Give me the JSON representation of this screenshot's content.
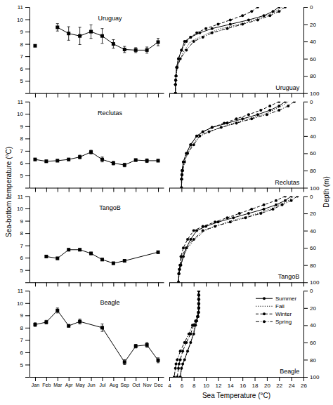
{
  "chart_data": [
    {
      "type": "line",
      "annotations": [
        "Uruguay"
      ],
      "categories": [
        "Jan",
        "Feb",
        "Mar",
        "Apr",
        "May",
        "Jun",
        "Jul",
        "Aug",
        "Sep",
        "Oct",
        "Nov",
        "Dec"
      ],
      "series": [
        {
          "x": [
            "Jan"
          ],
          "values": [
            7.85
          ],
          "line_style": "none"
        },
        {
          "x": [
            "Mar",
            "Apr",
            "May",
            "Jun",
            "Jul",
            "Aug",
            "Sep",
            "Oct",
            "Nov",
            "Dec"
          ],
          "values": [
            9.35,
            8.85,
            8.65,
            9.0,
            8.65,
            8.0,
            7.55,
            7.5,
            7.5,
            8.15
          ],
          "errors": [
            0.3,
            0.55,
            0.7,
            0.55,
            0.6,
            0.35,
            0.25,
            0.2,
            0.25,
            0.3
          ]
        }
      ],
      "color": "black",
      "marker": "square",
      "line_style": "solid",
      "ylim": [
        4,
        11
      ],
      "yticks": [
        {
          "value": 4,
          "label": null
        },
        5,
        6,
        7,
        8,
        9,
        10,
        11
      ],
      "tick_labels": "y"
    },
    {
      "type": "line",
      "annotations": [
        "Uruguay"
      ],
      "xlim": [
        4,
        26
      ],
      "xticks": [
        4,
        6,
        8,
        10,
        12,
        14,
        16,
        18,
        20,
        22,
        24,
        26
      ],
      "ylim": [
        100,
        0
      ],
      "yticks": [
        0,
        20,
        40,
        60,
        80,
        100
      ],
      "color": "black",
      "tick_labels": "y",
      "series": [
        {
          "x": [
            22.0,
            21.0,
            19.5,
            17.0,
            14.0,
            11.0,
            9.0,
            7.5,
            6.5,
            6.0,
            5.5,
            5.2,
            5.1,
            5.05,
            5.0,
            5.0
          ],
          "values": [
            0,
            5,
            10,
            15,
            20,
            25,
            30,
            35,
            40,
            50,
            60,
            70,
            80,
            85,
            90,
            100
          ],
          "line_style": "solid",
          "marker": "circle"
        },
        {
          "x": [
            22.5,
            21.5,
            20.0,
            18.0,
            15.5,
            12.5,
            10.5,
            9.0,
            7.5,
            6.5,
            5.8,
            5.3,
            5.1,
            5.05,
            5.0,
            5.0
          ],
          "values": [
            0,
            5,
            10,
            15,
            20,
            25,
            30,
            35,
            40,
            50,
            60,
            70,
            80,
            85,
            90,
            100
          ],
          "line_style": "dotted"
        },
        {
          "x": [
            18.5,
            17.5,
            16.0,
            14.0,
            12.0,
            10.0,
            8.5,
            7.5,
            6.8,
            6.0,
            5.5,
            5.2,
            5.1,
            5.05,
            5.0,
            5.0
          ],
          "values": [
            0,
            5,
            10,
            15,
            20,
            25,
            30,
            35,
            40,
            50,
            60,
            70,
            80,
            85,
            90,
            100
          ],
          "line_style": "dashed",
          "marker": "circle"
        },
        {
          "x": [
            23.0,
            22.0,
            20.5,
            18.5,
            16.0,
            13.5,
            11.0,
            9.5,
            8.0,
            6.8,
            5.8,
            5.3,
            5.1,
            5.05,
            5.0,
            5.0
          ],
          "values": [
            0,
            5,
            10,
            15,
            20,
            25,
            30,
            35,
            40,
            50,
            60,
            70,
            80,
            85,
            90,
            100
          ],
          "line_style": "dashdot",
          "marker": "circle"
        }
      ]
    },
    {
      "type": "line",
      "annotations": [
        "Reclutas"
      ],
      "ylabel": "Sea-bottom temperature (°C)",
      "categories": [
        "Jan",
        "Feb",
        "Mar",
        "Apr",
        "May",
        "Jun",
        "Jul",
        "Aug",
        "Sep",
        "Oct",
        "Nov",
        "Dec"
      ],
      "series": [
        {
          "x": [
            "Jan",
            "Feb",
            "Mar",
            "Apr",
            "May",
            "Jun",
            "Jul",
            "Aug",
            "Sep",
            "Oct",
            "Nov",
            "Dec"
          ],
          "values": [
            6.3,
            6.15,
            6.2,
            6.3,
            6.5,
            6.9,
            6.3,
            6.0,
            5.85,
            6.25,
            6.2,
            6.2
          ],
          "errors": [
            0.1,
            0.1,
            0.1,
            0.1,
            0.15,
            0.15,
            0.2,
            0.15,
            0.15,
            0.1,
            0.15,
            0.1
          ]
        }
      ],
      "color": "black",
      "marker": "square",
      "line_style": "solid",
      "ylim": [
        4,
        11
      ],
      "yticks": [
        {
          "value": 4,
          "label": null
        },
        5,
        6,
        7,
        8,
        9,
        10,
        11
      ],
      "tick_labels": "y"
    },
    {
      "type": "line",
      "annotations": [
        "Reclutas"
      ],
      "ylabel": "Depth (m)",
      "xlim": [
        4,
        26
      ],
      "xticks": [
        4,
        6,
        8,
        10,
        12,
        14,
        16,
        18,
        20,
        22,
        24,
        26
      ],
      "ylim": [
        100,
        0
      ],
      "yticks": [
        0,
        20,
        40,
        60,
        80,
        100
      ],
      "color": "black",
      "tick_labels": "y",
      "series": [
        {
          "x": [
            23.0,
            22.0,
            20.5,
            18.5,
            16.0,
            13.5,
            11.0,
            9.5,
            8.5,
            7.5,
            6.8,
            6.3,
            6.1,
            6.05,
            6.0,
            6.0
          ],
          "values": [
            0,
            5,
            10,
            15,
            20,
            25,
            30,
            35,
            40,
            50,
            60,
            70,
            80,
            85,
            90,
            100
          ],
          "line_style": "solid",
          "marker": "circle"
        },
        {
          "x": [
            23.5,
            22.5,
            21.0,
            19.5,
            17.0,
            14.5,
            12.5,
            10.5,
            9.0,
            7.8,
            7.0,
            6.5,
            6.2,
            6.1,
            6.05,
            6.0
          ],
          "values": [
            0,
            5,
            10,
            15,
            20,
            25,
            30,
            35,
            40,
            50,
            60,
            70,
            80,
            85,
            90,
            100
          ],
          "line_style": "dotted"
        },
        {
          "x": [
            22.0,
            20.5,
            19.0,
            17.0,
            15.0,
            13.0,
            11.0,
            9.5,
            8.5,
            7.5,
            6.8,
            6.3,
            6.1,
            6.05,
            6.0,
            6.0
          ],
          "values": [
            0,
            5,
            10,
            15,
            20,
            25,
            30,
            35,
            40,
            50,
            60,
            70,
            80,
            85,
            90,
            100
          ],
          "line_style": "dashed",
          "marker": "circle"
        },
        {
          "x": [
            24.5,
            23.5,
            22.0,
            20.0,
            17.5,
            15.0,
            12.5,
            10.5,
            9.0,
            8.0,
            7.0,
            6.5,
            6.2,
            6.1,
            6.05,
            6.0
          ],
          "values": [
            0,
            5,
            10,
            15,
            20,
            25,
            30,
            35,
            40,
            50,
            60,
            70,
            80,
            85,
            90,
            100
          ],
          "line_style": "dashdot",
          "marker": "circle"
        }
      ]
    },
    {
      "type": "line",
      "annotations": [
        "TangoB"
      ],
      "categories": [
        "Jan",
        "Feb",
        "Mar",
        "Apr",
        "May",
        "Jun",
        "Jul",
        "Aug",
        "Sep",
        "Oct",
        "Nov",
        "Dec"
      ],
      "series": [
        {
          "x": [
            "Feb",
            "Mar",
            "Apr",
            "May",
            "Jun",
            "Jul",
            "Aug",
            "Sep",
            "Dec"
          ],
          "values": [
            6.1,
            5.95,
            6.65,
            6.65,
            6.35,
            5.85,
            5.55,
            5.75,
            6.45
          ],
          "errors": [
            0.1,
            0.1,
            0.1,
            0.1,
            0.1,
            0.1,
            0.1,
            0.1,
            0.1
          ]
        }
      ],
      "color": "black",
      "marker": "square",
      "line_style": "solid",
      "ylim": [
        4,
        11
      ],
      "yticks": [
        {
          "value": 4,
          "label": null
        },
        5,
        6,
        7,
        8,
        9,
        10,
        11
      ],
      "tick_labels": "y"
    },
    {
      "type": "line",
      "annotations": [
        "TangoB"
      ],
      "xlim": [
        4,
        26
      ],
      "xticks": [
        4,
        6,
        8,
        10,
        12,
        14,
        16,
        18,
        20,
        22,
        24,
        26
      ],
      "ylim": [
        100,
        0
      ],
      "yticks": [
        0,
        20,
        40,
        60,
        80,
        100
      ],
      "color": "black",
      "tick_labels": "y",
      "series": [
        {
          "x": [
            24.0,
            23.0,
            21.5,
            19.5,
            17.0,
            14.5,
            12.0,
            10.0,
            8.5,
            7.5,
            6.8,
            6.3,
            5.9,
            5.7,
            5.6,
            5.5
          ],
          "values": [
            0,
            5,
            10,
            15,
            20,
            25,
            30,
            35,
            40,
            50,
            60,
            70,
            80,
            85,
            90,
            100
          ],
          "line_style": "solid",
          "marker": "circle"
        },
        {
          "x": [
            24.5,
            23.5,
            22.0,
            20.5,
            18.5,
            16.0,
            13.5,
            11.5,
            9.8,
            8.2,
            7.0,
            6.3,
            5.9,
            5.7,
            5.6,
            5.5
          ],
          "values": [
            0,
            5,
            10,
            15,
            20,
            25,
            30,
            35,
            40,
            50,
            60,
            70,
            80,
            85,
            90,
            100
          ],
          "line_style": "dotted"
        },
        {
          "x": [
            23.0,
            21.5,
            19.5,
            17.5,
            15.5,
            13.5,
            11.5,
            9.5,
            8.0,
            7.0,
            6.3,
            5.9,
            5.75,
            5.65,
            5.55,
            5.5
          ],
          "values": [
            0,
            5,
            10,
            15,
            20,
            25,
            30,
            35,
            40,
            50,
            60,
            70,
            80,
            85,
            90,
            100
          ],
          "line_style": "dashed",
          "marker": "circle"
        },
        {
          "x": [
            25.0,
            24.0,
            22.5,
            21.0,
            19.0,
            16.5,
            14.0,
            11.5,
            9.5,
            8.0,
            6.8,
            6.0,
            5.8,
            5.65,
            5.55,
            5.5
          ],
          "values": [
            0,
            5,
            10,
            15,
            20,
            25,
            30,
            35,
            40,
            50,
            60,
            70,
            80,
            85,
            90,
            100
          ],
          "line_style": "dashdot",
          "marker": "circle"
        }
      ]
    },
    {
      "type": "line",
      "annotations": [
        "Beagle"
      ],
      "categories": [
        "Jan",
        "Feb",
        "Mar",
        "Apr",
        "May",
        "Jun",
        "Jul",
        "Aug",
        "Sep",
        "Oct",
        "Nov",
        "Dec"
      ],
      "series": [
        {
          "x": [
            "Jan",
            "Feb",
            "Mar",
            "Apr",
            "May",
            "Jul",
            "Sep",
            "Oct",
            "Nov",
            "Dec"
          ],
          "values": [
            8.25,
            8.45,
            9.4,
            8.15,
            8.5,
            8.0,
            5.2,
            6.5,
            6.6,
            5.35
          ],
          "errors": [
            0.15,
            0.15,
            0.2,
            0.1,
            0.2,
            0.3,
            0.2,
            0.15,
            0.2,
            0.2
          ]
        }
      ],
      "color": "black",
      "marker": "square",
      "line_style": "solid",
      "ylim": [
        4,
        11
      ],
      "yticks": [
        {
          "value": 4,
          "label": null
        },
        5,
        6,
        7,
        8,
        9,
        10,
        11
      ]
    },
    {
      "type": "line",
      "annotations": [
        "Beagle"
      ],
      "xlabel": "Sea Temperature (°C)",
      "xlim": [
        4,
        26
      ],
      "xticks": [
        4,
        6,
        8,
        10,
        12,
        14,
        16,
        18,
        20,
        22,
        24,
        26
      ],
      "ylim": [
        100,
        0
      ],
      "yticks": [
        0,
        20,
        40,
        60,
        80,
        100
      ],
      "color": "black",
      "legend": "upper right",
      "series": [
        {
          "name": "Summer",
          "x": [
            8.85,
            8.85,
            8.85,
            8.85,
            8.85,
            8.8,
            8.7,
            8.5,
            8.3,
            8.0,
            7.5,
            7.0,
            6.5,
            6.2,
            6.0,
            5.8
          ],
          "values": [
            0,
            5,
            10,
            15,
            20,
            25,
            30,
            35,
            40,
            50,
            60,
            70,
            80,
            85,
            90,
            100
          ],
          "line_style": "solid",
          "marker": "circle"
        },
        {
          "name": "Fall",
          "x": [
            8.7,
            8.7,
            8.7,
            8.7,
            8.7,
            8.65,
            8.55,
            8.45,
            8.2,
            7.9,
            7.5,
            7.0,
            6.5,
            6.2,
            6.0,
            5.8
          ],
          "values": [
            0,
            5,
            10,
            15,
            20,
            25,
            30,
            35,
            40,
            50,
            60,
            70,
            80,
            85,
            90,
            100
          ],
          "line_style": "dotted"
        },
        {
          "name": "Winter",
          "x": [
            8.85,
            8.85,
            8.85,
            8.85,
            8.85,
            8.8,
            8.7,
            8.4,
            8.0,
            7.5,
            6.8,
            6.2,
            5.8,
            5.6,
            5.5,
            5.3
          ],
          "values": [
            0,
            5,
            10,
            15,
            20,
            25,
            30,
            35,
            40,
            50,
            60,
            70,
            80,
            85,
            90,
            100
          ],
          "line_style": "dashed",
          "marker": "circle"
        },
        {
          "name": "Spring",
          "x": [
            8.8,
            8.8,
            8.8,
            8.8,
            8.8,
            8.75,
            8.6,
            8.3,
            7.8,
            7.2,
            6.5,
            5.8,
            5.3,
            5.1,
            5.0,
            4.8
          ],
          "values": [
            0,
            5,
            10,
            15,
            20,
            25,
            30,
            35,
            40,
            50,
            60,
            70,
            80,
            85,
            90,
            100
          ],
          "line_style": "dashdot",
          "marker": "circle"
        }
      ]
    }
  ]
}
